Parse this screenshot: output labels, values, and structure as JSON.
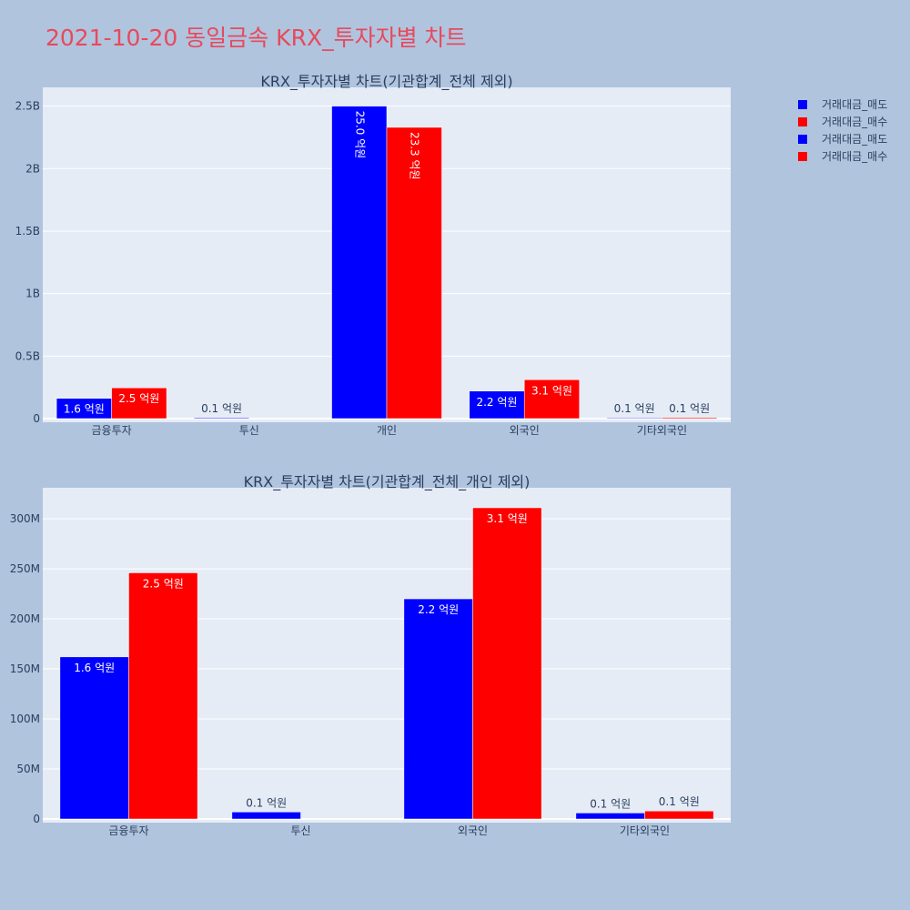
{
  "page_title": "2021-10-20 동일금속 KRX_투자자별 차트",
  "colors": {
    "sell": "#0000ff",
    "buy": "#ff0000",
    "plot_bg": "#e5ecf6",
    "page_bg": "#b0c4de",
    "title": "#e8495c"
  },
  "legend": [
    {
      "label": "거래대금_매도",
      "color": "#0000ff"
    },
    {
      "label": "거래대금_매수",
      "color": "#ff0000"
    },
    {
      "label": "거래대금_매도",
      "color": "#0000ff"
    },
    {
      "label": "거래대금_매수",
      "color": "#ff0000"
    }
  ],
  "chart_data": [
    {
      "type": "bar",
      "title": "KRX_투자자별 차트(기관합계_전체 제외)",
      "categories": [
        "금융투자",
        "투신",
        "개인",
        "외국인",
        "기타외국인"
      ],
      "ylim": [
        0,
        2650000000
      ],
      "yticks": [
        0,
        500000000,
        1000000000,
        1500000000,
        2000000000,
        2500000000
      ],
      "ytick_labels": [
        "0",
        "0.5B",
        "1B",
        "1.5B",
        "2B",
        "2.5B"
      ],
      "grid": true,
      "legend_position": "top-right",
      "series": [
        {
          "name": "거래대금_매도",
          "color": "#0000ff",
          "values": [
            162000000,
            7000000,
            2500000000,
            220000000,
            6000000
          ],
          "labels": [
            "1.6 억원",
            "0.1 억원",
            "25.0 억원",
            "2.2 억원",
            "0.1 억원"
          ]
        },
        {
          "name": "거래대금_매수",
          "color": "#ff0000",
          "values": [
            246000000,
            0,
            2330000000,
            311000000,
            8000000
          ],
          "labels": [
            "2.5 억원",
            "",
            "23.3 억원",
            "3.1 억원",
            "0.1 억원"
          ]
        }
      ]
    },
    {
      "type": "bar",
      "title": "KRX_투자자별 차트(기관합계_전체_개인 제외)",
      "categories": [
        "금융투자",
        "투신",
        "외국인",
        "기타외국인"
      ],
      "ylim": [
        0,
        331000000
      ],
      "yticks": [
        0,
        50000000,
        100000000,
        150000000,
        200000000,
        250000000,
        300000000
      ],
      "ytick_labels": [
        "0",
        "50M",
        "100M",
        "150M",
        "200M",
        "250M",
        "300M"
      ],
      "grid": true,
      "series": [
        {
          "name": "거래대금_매도",
          "color": "#0000ff",
          "values": [
            162000000,
            7000000,
            220000000,
            6000000
          ],
          "labels": [
            "1.6 억원",
            "0.1 억원",
            "2.2 억원",
            "0.1 억원"
          ]
        },
        {
          "name": "거래대금_매수",
          "color": "#ff0000",
          "values": [
            246000000,
            0,
            311000000,
            8000000
          ],
          "labels": [
            "2.5 억원",
            "",
            "3.1 억원",
            "0.1 억원"
          ]
        }
      ]
    }
  ]
}
